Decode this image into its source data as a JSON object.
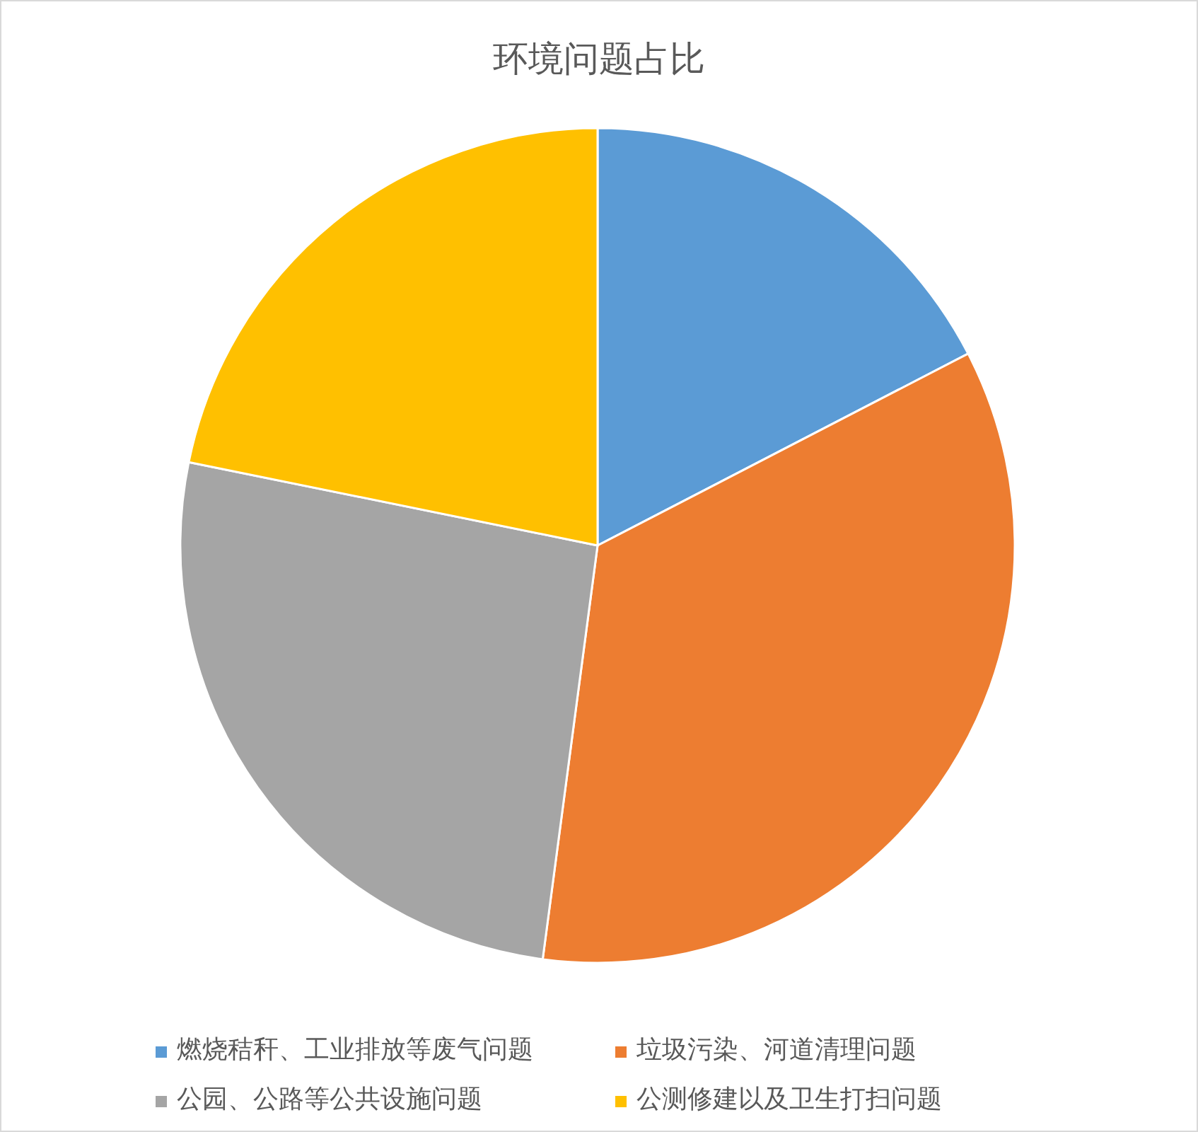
{
  "chart_data": {
    "type": "pie",
    "title": "环境问题占比",
    "categories": [
      "燃烧秸秆、工业排放等废气问题",
      "垃圾污染、河道清理问题",
      "公园、公路等公共设施问题",
      "公测修建以及卫生打扫问题"
    ],
    "values": [
      17.4,
      34.7,
      26.1,
      21.8
    ],
    "colors": [
      "#5b9bd5",
      "#ed7d31",
      "#a5a5a5",
      "#ffc000"
    ],
    "legend": "bottom"
  }
}
